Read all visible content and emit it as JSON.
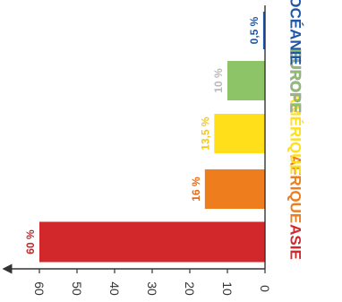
{
  "chart_data": {
    "type": "bar",
    "orientation": "horizontal",
    "categories": [
      "ASIE",
      "AFRIQUE",
      "AMÉRIQUE",
      "EUROPE",
      "OCÉANIE"
    ],
    "values": [
      60,
      16,
      13.5,
      10,
      0.5
    ],
    "value_labels": [
      "60 %",
      "16 %",
      "13,5 %",
      "10 %",
      "0,5 %"
    ],
    "colors": [
      "#d3282b",
      "#ee7d1d",
      "#ffdf1a",
      "#8dc468",
      "#1f57a8"
    ],
    "label_colors": [
      "#c0282b",
      "#e06b1c",
      "#f2c919",
      "#b9b9b9",
      "#1f57a8"
    ],
    "x_ticks": [
      0,
      10,
      20,
      30,
      40,
      50,
      60
    ],
    "xlim": [
      0,
      65
    ],
    "title": "",
    "xlabel": "",
    "ylabel": "",
    "grid": false,
    "legend": "none"
  }
}
